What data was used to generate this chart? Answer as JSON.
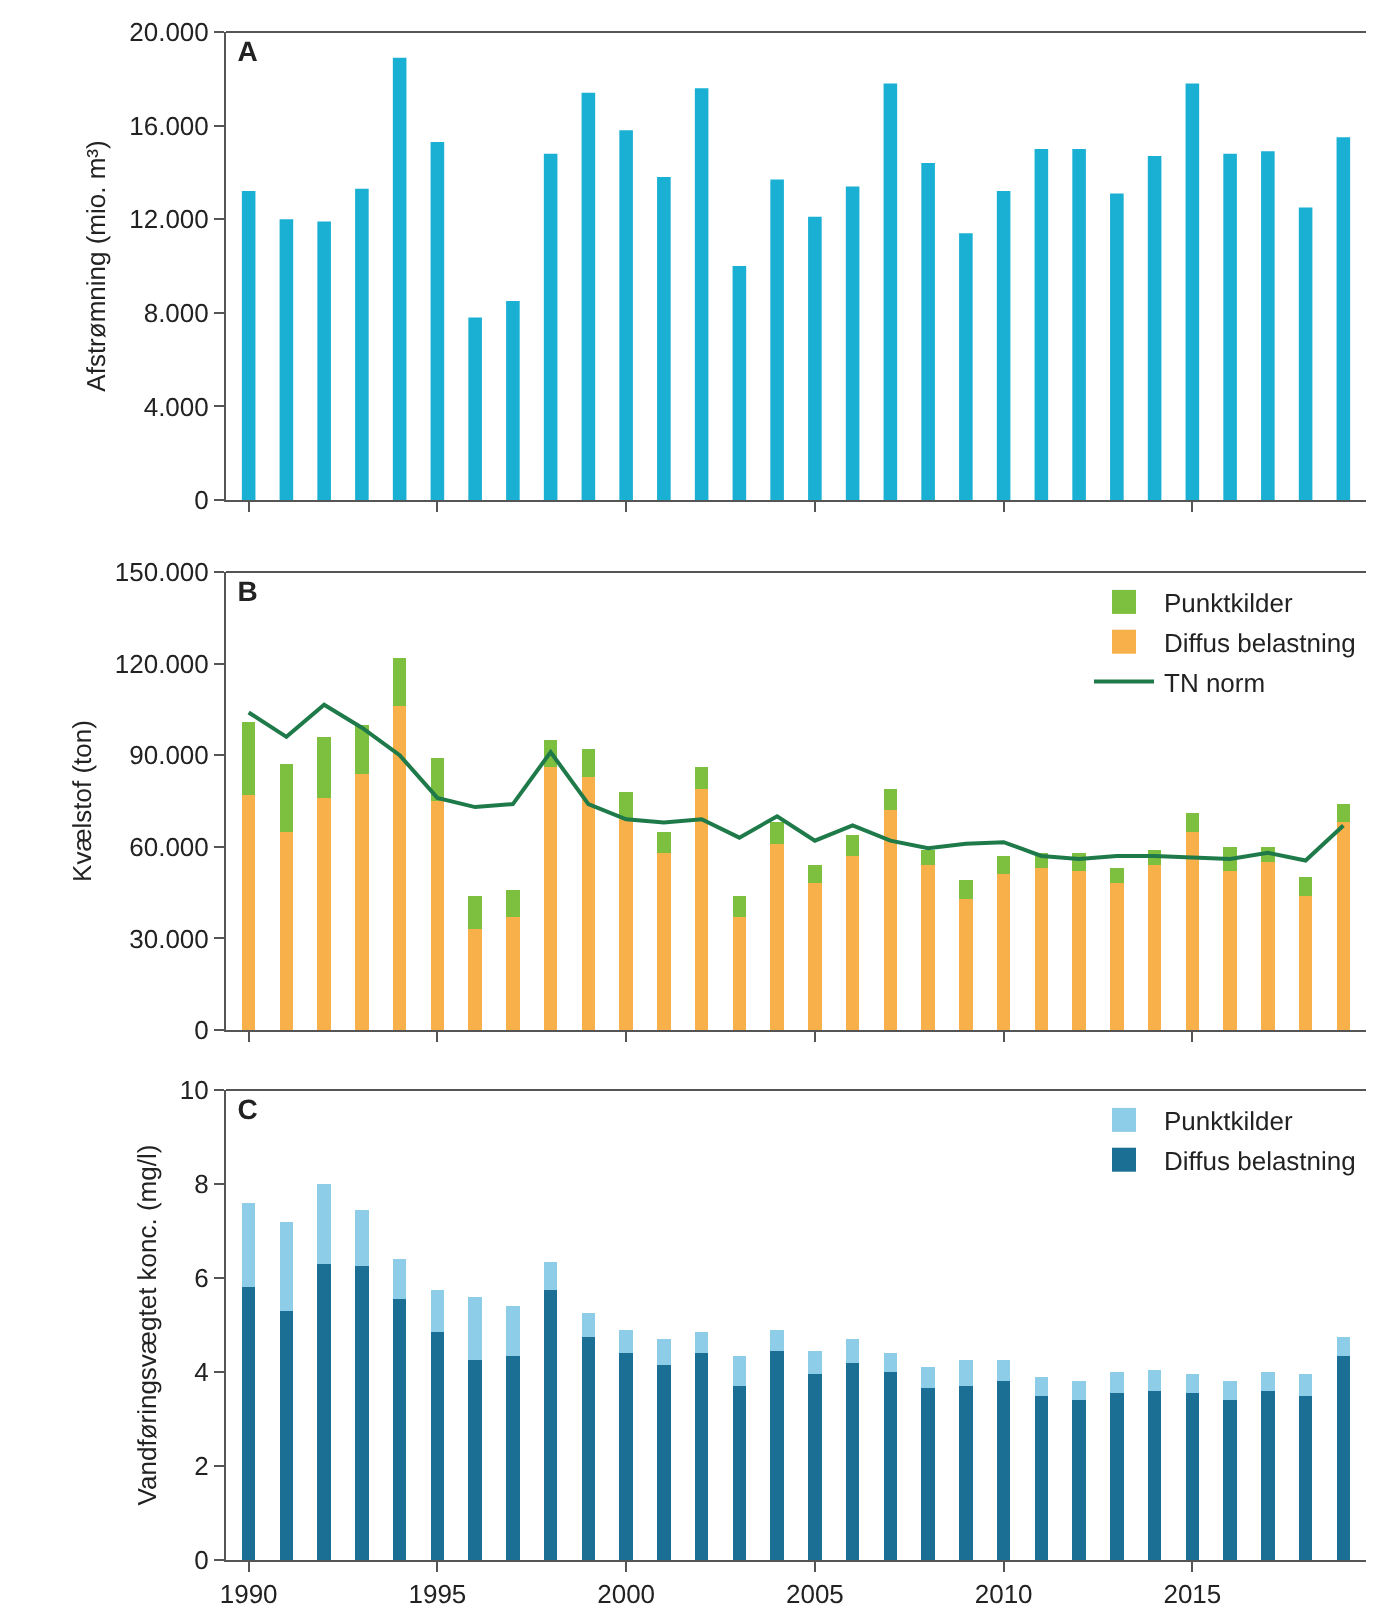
{
  "chart_data": [
    {
      "type": "bar",
      "title": "A",
      "ylabel": "Afstrømning (mio. m³)",
      "x": [
        1990,
        1991,
        1992,
        1993,
        1994,
        1995,
        1996,
        1997,
        1998,
        1999,
        2000,
        2001,
        2002,
        2003,
        2004,
        2005,
        2006,
        2007,
        2008,
        2009,
        2010,
        2011,
        2012,
        2013,
        2014,
        2015,
        2016,
        2017,
        2018,
        2019
      ],
      "series": [
        {
          "color": "#1ab0d4",
          "values": [
            13200,
            12000,
            11900,
            13300,
            18900,
            15300,
            7800,
            8500,
            14800,
            17400,
            15800,
            13800,
            17600,
            10000,
            13700,
            12100,
            13400,
            17800,
            14400,
            11400,
            13200,
            15000,
            15000,
            13100,
            14700,
            17800,
            14800,
            14900,
            12500,
            15500
          ]
        }
      ],
      "xlim": [
        1989.4,
        2019.6
      ],
      "xticks": [
        {
          "value": 1990,
          "label": null
        },
        {
          "value": 1995,
          "label": null
        },
        {
          "value": 2000,
          "label": null
        },
        {
          "value": 2005,
          "label": null
        },
        {
          "value": 2010,
          "label": null
        },
        {
          "value": 2015,
          "label": null
        }
      ],
      "ylim": [
        0,
        20000
      ],
      "yticks": [
        0,
        {
          "value": 4000,
          "label": "4.000"
        },
        {
          "value": 8000,
          "label": "8.000"
        },
        {
          "value": 12000,
          "label": "12.000"
        },
        {
          "value": 16000,
          "label": "16.000"
        },
        {
          "value": 20000,
          "label": "20.000"
        }
      ],
      "tick_labels": "y",
      "grid": false,
      "legend": false
    },
    {
      "type": "bar",
      "title": "B",
      "ylabel": "Kvælstof (ton)",
      "stacked": true,
      "x": [
        1990,
        1991,
        1992,
        1993,
        1994,
        1995,
        1996,
        1997,
        1998,
        1999,
        2000,
        2001,
        2002,
        2003,
        2004,
        2005,
        2006,
        2007,
        2008,
        2009,
        2010,
        2011,
        2012,
        2013,
        2014,
        2015,
        2016,
        2017,
        2018,
        2019
      ],
      "series": [
        {
          "name": "Diffus belastning",
          "color": "#f7b04a",
          "values": [
            77000,
            65000,
            76000,
            84000,
            106000,
            75000,
            33000,
            37000,
            86000,
            83000,
            69000,
            58000,
            79000,
            37000,
            61000,
            48000,
            57000,
            72000,
            54000,
            43000,
            51000,
            53000,
            52000,
            48000,
            54000,
            65000,
            52000,
            55000,
            44000,
            68000
          ]
        },
        {
          "name": "Punktkilder",
          "color": "#7dbf3f",
          "values": [
            24000,
            22000,
            20000,
            16000,
            16000,
            14000,
            11000,
            9000,
            9000,
            9000,
            9000,
            7000,
            7000,
            7000,
            7000,
            6000,
            7000,
            7000,
            5000,
            6000,
            6000,
            5000,
            6000,
            5000,
            5000,
            6000,
            8000,
            5000,
            6000,
            6000
          ]
        },
        {
          "name": "TN norm",
          "type": "line",
          "color": "#1f7a4a",
          "values": [
            104000,
            96000,
            106500,
            99000,
            90000,
            76000,
            73000,
            74000,
            91000,
            74000,
            69000,
            68000,
            69000,
            63000,
            70000,
            62000,
            67000,
            62000,
            59500,
            61000,
            61500,
            57000,
            56000,
            57000,
            57000,
            56500,
            56000,
            58000,
            55500,
            67000
          ]
        }
      ],
      "xlim": [
        1989.4,
        2019.6
      ],
      "xticks": [
        {
          "value": 1990,
          "label": null
        },
        {
          "value": 1995,
          "label": null
        },
        {
          "value": 2000,
          "label": null
        },
        {
          "value": 2005,
          "label": null
        },
        {
          "value": 2010,
          "label": null
        },
        {
          "value": 2015,
          "label": null
        }
      ],
      "ylim": [
        0,
        150000
      ],
      "yticks": [
        0,
        {
          "value": 30000,
          "label": "30.000"
        },
        {
          "value": 60000,
          "label": "60.000"
        },
        {
          "value": 90000,
          "label": "90.000"
        },
        {
          "value": 120000,
          "label": "120.000"
        },
        {
          "value": 150000,
          "label": "150.000"
        }
      ],
      "tick_labels": "y",
      "grid": false,
      "legend": "top right",
      "marker": "none",
      "line_style": "solid"
    },
    {
      "type": "bar",
      "title": "C",
      "ylabel": "Vandføringsvægtet konc. (mg/l)",
      "stacked": true,
      "x": [
        1990,
        1991,
        1992,
        1993,
        1994,
        1995,
        1996,
        1997,
        1998,
        1999,
        2000,
        2001,
        2002,
        2003,
        2004,
        2005,
        2006,
        2007,
        2008,
        2009,
        2010,
        2011,
        2012,
        2013,
        2014,
        2015,
        2016,
        2017,
        2018,
        2019
      ],
      "series": [
        {
          "name": "Diffus belastning",
          "color": "#1b6f94",
          "values": [
            5.8,
            5.3,
            6.3,
            6.25,
            5.55,
            4.85,
            4.25,
            4.35,
            5.75,
            4.75,
            4.4,
            4.15,
            4.4,
            3.7,
            4.45,
            3.95,
            4.2,
            4.0,
            3.65,
            3.7,
            3.8,
            3.5,
            3.4,
            3.55,
            3.6,
            3.55,
            3.4,
            3.6,
            3.5,
            4.35
          ]
        },
        {
          "name": "Punktkilder",
          "color": "#8ecde8",
          "values": [
            1.8,
            1.9,
            1.7,
            1.2,
            0.85,
            0.9,
            1.35,
            1.05,
            0.6,
            0.5,
            0.5,
            0.55,
            0.45,
            0.65,
            0.45,
            0.5,
            0.5,
            0.4,
            0.45,
            0.55,
            0.45,
            0.4,
            0.4,
            0.45,
            0.45,
            0.4,
            0.4,
            0.4,
            0.45,
            0.4
          ]
        }
      ],
      "xlim": [
        1989.4,
        2019.6
      ],
      "xticks": [
        1990,
        1995,
        2000,
        2005,
        2010,
        2015
      ],
      "ylim": [
        0,
        10
      ],
      "yticks": [
        0,
        2,
        4,
        6,
        8,
        10
      ],
      "grid": false,
      "legend": "top right"
    }
  ]
}
